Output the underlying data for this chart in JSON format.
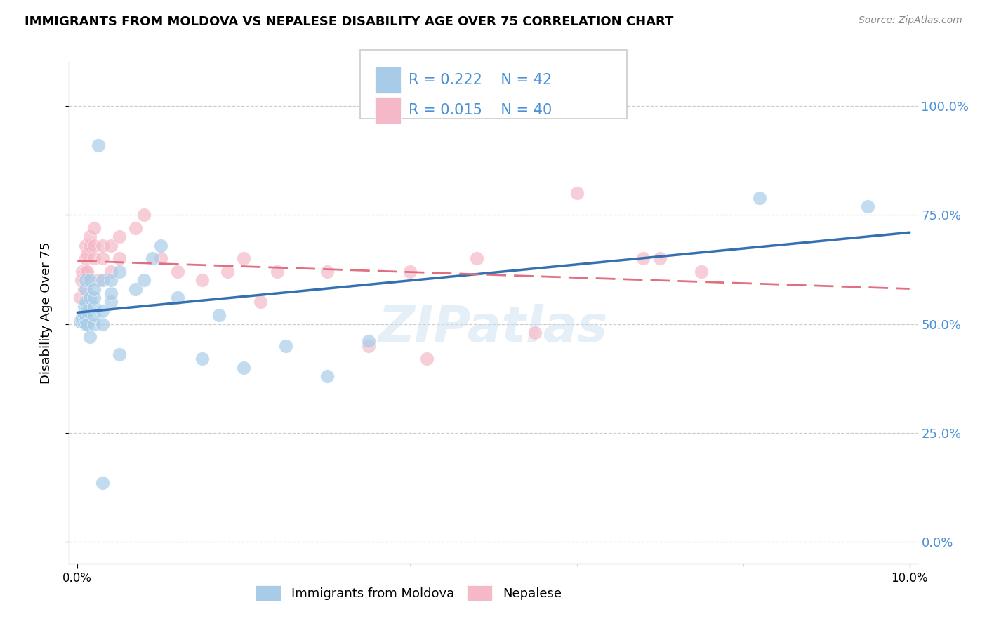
{
  "title": "IMMIGRANTS FROM MOLDOVA VS NEPALESE DISABILITY AGE OVER 75 CORRELATION CHART",
  "source": "Source: ZipAtlas.com",
  "ylabel": "Disability Age Over 75",
  "legend1_r": "0.222",
  "legend1_n": "42",
  "legend2_r": "0.015",
  "legend2_n": "40",
  "color_blue": "#a8cce8",
  "color_pink": "#f5b8c8",
  "line_blue": "#3570b0",
  "line_pink": "#e07080",
  "watermark": "ZIPatlas",
  "moldova_x": [
    0.0003,
    0.0005,
    0.0006,
    0.0008,
    0.0008,
    0.001,
    0.001,
    0.001,
    0.001,
    0.001,
    0.0012,
    0.0012,
    0.0015,
    0.0015,
    0.0015,
    0.002,
    0.002,
    0.002,
    0.002,
    0.002,
    0.0025,
    0.003,
    0.003,
    0.003,
    0.004,
    0.004,
    0.004,
    0.005,
    0.005,
    0.007,
    0.008,
    0.009,
    0.01,
    0.012,
    0.015,
    0.017,
    0.02,
    0.025,
    0.03,
    0.035,
    0.082,
    0.095
  ],
  "moldova_y": [
    0.505,
    0.51,
    0.515,
    0.52,
    0.54,
    0.5,
    0.52,
    0.55,
    0.58,
    0.6,
    0.5,
    0.53,
    0.47,
    0.56,
    0.6,
    0.5,
    0.52,
    0.54,
    0.56,
    0.58,
    0.91,
    0.5,
    0.53,
    0.6,
    0.55,
    0.57,
    0.6,
    0.43,
    0.62,
    0.58,
    0.6,
    0.65,
    0.68,
    0.56,
    0.42,
    0.52,
    0.4,
    0.45,
    0.38,
    0.46,
    0.79,
    0.77
  ],
  "moldova_outlier_x": [
    0.003
  ],
  "moldova_outlier_y": [
    0.135
  ],
  "nepalese_x": [
    0.0003,
    0.0005,
    0.0006,
    0.0008,
    0.001,
    0.001,
    0.001,
    0.0012,
    0.0012,
    0.0015,
    0.0015,
    0.002,
    0.002,
    0.002,
    0.0025,
    0.003,
    0.003,
    0.004,
    0.004,
    0.005,
    0.005,
    0.007,
    0.008,
    0.01,
    0.012,
    0.015,
    0.018,
    0.02,
    0.022,
    0.024,
    0.03,
    0.035,
    0.04,
    0.042,
    0.048,
    0.055,
    0.06,
    0.068,
    0.07,
    0.075
  ],
  "nepalese_y": [
    0.56,
    0.6,
    0.62,
    0.58,
    0.62,
    0.65,
    0.68,
    0.62,
    0.66,
    0.68,
    0.7,
    0.65,
    0.68,
    0.72,
    0.6,
    0.65,
    0.68,
    0.62,
    0.68,
    0.65,
    0.7,
    0.72,
    0.75,
    0.65,
    0.62,
    0.6,
    0.62,
    0.65,
    0.55,
    0.62,
    0.62,
    0.45,
    0.62,
    0.42,
    0.65,
    0.48,
    0.8,
    0.65,
    0.65,
    0.62
  ],
  "xlim": [
    0.0,
    0.1
  ],
  "ylim": [
    0.0,
    1.0
  ],
  "ytick_vals": [
    0.0,
    0.25,
    0.5,
    0.75,
    1.0
  ],
  "xtick_vals": [
    0.0,
    0.1
  ],
  "xtick_minor_vals": [
    0.02,
    0.04,
    0.06,
    0.08
  ]
}
